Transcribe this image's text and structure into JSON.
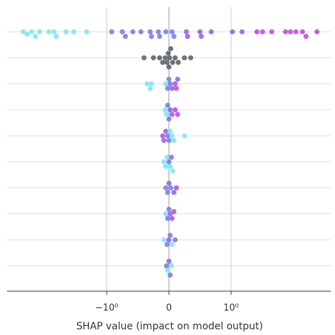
{
  "chart_data": {
    "type": "scatter",
    "xlabel": "SHAP value (impact on model output)",
    "xscale": "symlog",
    "linthresh": 1,
    "xlim": [
      -40,
      40
    ],
    "xticks": [
      {
        "value": -1,
        "label": "−10⁰"
      },
      0,
      {
        "value": 1,
        "label": "10⁰"
      }
    ],
    "grid": true,
    "rows": [
      {
        "x": [
          -22,
          -19,
          -16,
          -14,
          -12,
          -8.5,
          -7,
          -6.5,
          -4.5,
          -3.4,
          -2.1,
          -0.92,
          -0.75,
          -0.7,
          -0.58,
          -0.45,
          -0.3,
          -0.28,
          -0.17,
          -0.15,
          -0.05,
          0.05,
          0.08,
          0.28,
          0.3,
          0.5,
          0.52,
          0.68,
          1.05,
          1.5,
          2.6,
          3.2,
          4.5,
          7.5,
          9,
          11,
          14,
          16,
          24
        ],
        "colors": [
          "#7fe6f2",
          "#7fe6f2",
          "#7fe6f2",
          "#7fe6f2",
          "#7fe6f2",
          "#7fe6f2",
          "#7fe6f2",
          "#7fe6f2",
          "#7fe6f2",
          "#7fe6f2",
          "#7fe6f2",
          "#7b7fe8",
          "#7b7fe8",
          "#7b7fe8",
          "#7b7fe8",
          "#7b7fe8",
          "#7b7fe8",
          "#7b7fe8",
          "#7b7fe8",
          "#7b7fe8",
          "#7b7fe8",
          "#7b7fe8",
          "#7b7fe8",
          "#9b63ee",
          "#9b63ee",
          "#9b63ee",
          "#9b63ee",
          "#9b63ee",
          "#9b63ee",
          "#9b63ee",
          "#c44de6",
          "#c44de6",
          "#c44de6",
          "#c44de6",
          "#c44de6",
          "#c44de6",
          "#c44de6",
          "#c44de6",
          "#c44de6"
        ]
      },
      {
        "x": [
          -0.4,
          -0.25,
          -0.15,
          -0.1,
          -0.06,
          -0.03,
          -0.01,
          0,
          0.01,
          0.03,
          0.06,
          0.1,
          0.15,
          0.25,
          0.35
        ],
        "color": "#5f6468"
      },
      {
        "x": [
          -0.35,
          -0.3,
          -0.28,
          -0.05,
          -0.02,
          0,
          0.02,
          0.05,
          0.1,
          0.12,
          0.14
        ],
        "colors": [
          "#7fe6f2",
          "#7fe6f2",
          "#7fe6f2",
          "#7fe6f2",
          "#7b7fe8",
          "#7b7fe8",
          "#7b7fe8",
          "#9b63ee",
          "#c44de6",
          "#c44de6",
          "#9b63ee"
        ]
      },
      {
        "x": [
          -0.06,
          -0.04,
          -0.02,
          0,
          0.02,
          0.05,
          0.1,
          0.14
        ],
        "colors": [
          "#7fe6f2",
          "#7fe6f2",
          "#7b7fe8",
          "#7b7fe8",
          "#9b63ee",
          "#9b63ee",
          "#c44de6",
          "#c44de6"
        ]
      },
      {
        "x": [
          -0.1,
          -0.08,
          -0.05,
          -0.02,
          0,
          0.02,
          0.05,
          0.08,
          0.25
        ],
        "colors": [
          "#c44de6",
          "#9b63ee",
          "#9b63ee",
          "#7b7fe8",
          "#7b7fe8",
          "#7fe6f2",
          "#7fe6f2",
          "#7fe6f2",
          "#7fe6f2"
        ]
      },
      {
        "x": [
          -0.08,
          -0.05,
          -0.03,
          0,
          0.02,
          0.04,
          0.06
        ],
        "colors": [
          "#7fe6f2",
          "#7fe6f2",
          "#7fe6f2",
          "#7b7fe8",
          "#7fe6f2",
          "#7b7fe8",
          "#7fe6f2"
        ]
      },
      {
        "x": [
          -0.05,
          -0.02,
          0,
          0.03,
          0.08,
          0.12
        ],
        "colors": [
          "#7b7fe8",
          "#7b7fe8",
          "#9b63ee",
          "#7b7fe8",
          "#9b63ee",
          "#c44de6"
        ]
      },
      {
        "x": [
          -0.05,
          -0.02,
          0,
          0.02,
          0.05,
          0.08
        ],
        "colors": [
          "#7fe6f2",
          "#7b7fe8",
          "#7b7fe8",
          "#9b63ee",
          "#9b63ee",
          "#c44de6"
        ]
      },
      {
        "x": [
          -0.08,
          -0.03,
          0,
          0.02,
          0.05,
          0.1
        ],
        "colors": [
          "#7fe6f2",
          "#7b7fe8",
          "#9b63ee",
          "#7b7fe8",
          "#7fe6f2",
          "#7b7fe8"
        ]
      },
      {
        "x": [
          -0.04,
          -0.02,
          0,
          0.02,
          0.04
        ],
        "colors": [
          "#7b7fe8",
          "#7fe6f2",
          "#9b63ee",
          "#7b7fe8",
          "#7fe6f2"
        ]
      }
    ]
  }
}
